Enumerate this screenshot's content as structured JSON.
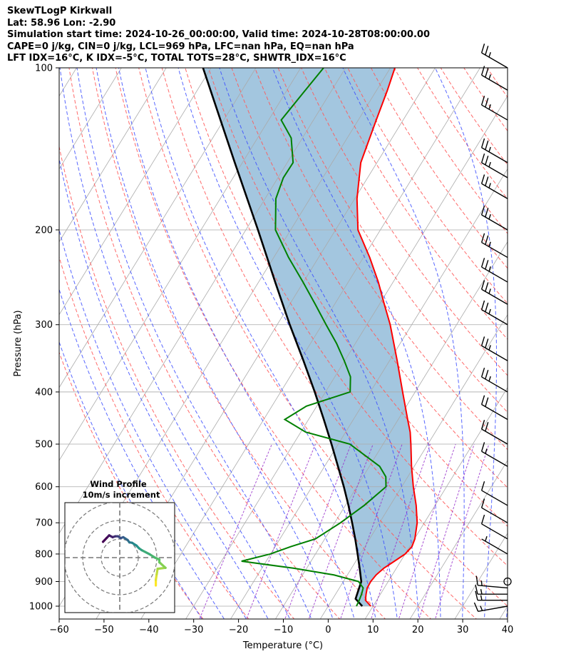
{
  "header": {
    "line1": "SkewTLogP Kirkwall",
    "line2": "Lat: 58.96   Lon: -2.90",
    "line3": "Simulation start time: 2024-10-26_00:00:00, Valid time: 2024-10-28T08:00:00.00",
    "line4": "CAPE=0 j/kg, CIN=0 j/kg, LCL=969 hPa, LFC=nan hPa, EQ=nan hPa",
    "line5": "LFT IDX=16°C, K IDX=-5°C, TOTAL TOTS=28°C, SHWTR_IDX=16°C"
  },
  "chart_data": {
    "type": "line",
    "xlabel": "Temperature (°C)",
    "ylabel": "Pressure (hPa)",
    "xlim": [
      -60,
      40
    ],
    "ylim": [
      1050,
      100
    ],
    "y_scale": "log",
    "x_ticks": [
      "−60",
      "−50",
      "−40",
      "−30",
      "−20",
      "−10",
      "0",
      "10",
      "20",
      "30",
      "40"
    ],
    "x_tick_values": [
      -60,
      -50,
      -40,
      -30,
      -20,
      -10,
      0,
      10,
      20,
      30,
      40
    ],
    "y_ticks": [
      "1000",
      "900",
      "800",
      "700",
      "600",
      "500",
      "400",
      "300",
      "200",
      "100"
    ],
    "y_tick_values": [
      1000,
      900,
      800,
      700,
      600,
      500,
      400,
      300,
      200,
      100
    ],
    "grid": true,
    "colors": {
      "temperature": "#ff0000",
      "dewpoint": "#008000",
      "parcel": "#000000",
      "shade": "#a3c6df",
      "dry_adiabat": "#ff5a5a",
      "moist_adiabat": "#3b4cff",
      "mixing_ratio": "#9932cc",
      "isotherm": "#aaaaaa"
    },
    "temperature_profile": [
      [
        1000,
        9.5
      ],
      [
        975,
        7.5
      ],
      [
        950,
        6.8
      ],
      [
        925,
        6.2
      ],
      [
        900,
        6.1
      ],
      [
        875,
        6.4
      ],
      [
        850,
        7.2
      ],
      [
        825,
        8.6
      ],
      [
        800,
        10.0
      ],
      [
        775,
        10.5
      ],
      [
        750,
        10.1
      ],
      [
        700,
        8.4
      ],
      [
        650,
        5.8
      ],
      [
        600,
        2.6
      ],
      [
        550,
        -0.6
      ],
      [
        500,
        -3.8
      ],
      [
        475,
        -5.6
      ],
      [
        450,
        -7.9
      ],
      [
        400,
        -12.8
      ],
      [
        350,
        -18.3
      ],
      [
        300,
        -24.8
      ],
      [
        275,
        -28.9
      ],
      [
        250,
        -33.3
      ],
      [
        225,
        -38.6
      ],
      [
        200,
        -45.0
      ],
      [
        175,
        -49.5
      ],
      [
        150,
        -53.6
      ],
      [
        125,
        -56.0
      ],
      [
        110,
        -57.6
      ],
      [
        100,
        -59.0
      ]
    ],
    "dewpoint_profile": [
      [
        1000,
        6.3
      ],
      [
        975,
        6.1
      ],
      [
        950,
        5.8
      ],
      [
        925,
        5.3
      ],
      [
        900,
        3.4
      ],
      [
        875,
        -3.0
      ],
      [
        850,
        -13.0
      ],
      [
        825,
        -25.5
      ],
      [
        800,
        -20.1
      ],
      [
        775,
        -16.5
      ],
      [
        750,
        -12.1
      ],
      [
        700,
        -8.7
      ],
      [
        650,
        -5.8
      ],
      [
        600,
        -3.5
      ],
      [
        575,
        -4.9
      ],
      [
        550,
        -7.7
      ],
      [
        500,
        -17.4
      ],
      [
        475,
        -28.9
      ],
      [
        450,
        -35.3
      ],
      [
        425,
        -32.3
      ],
      [
        400,
        -24.5
      ],
      [
        375,
        -26.5
      ],
      [
        350,
        -30.1
      ],
      [
        325,
        -34.2
      ],
      [
        300,
        -39.1
      ],
      [
        275,
        -44.3
      ],
      [
        250,
        -50.1
      ],
      [
        225,
        -56.7
      ],
      [
        200,
        -63.4
      ],
      [
        175,
        -67.6
      ],
      [
        160,
        -68.8
      ],
      [
        150,
        -68.7
      ],
      [
        135,
        -72.5
      ],
      [
        125,
        -77.2
      ],
      [
        110,
        -75.9
      ],
      [
        100,
        -74.9
      ]
    ],
    "parcel_profile": [
      [
        1000,
        7.6
      ],
      [
        969,
        5.1
      ],
      [
        925,
        4.4
      ],
      [
        900,
        4.0
      ],
      [
        850,
        1.8
      ],
      [
        800,
        -0.6
      ],
      [
        750,
        -3.2
      ],
      [
        700,
        -6.1
      ],
      [
        650,
        -9.3
      ],
      [
        600,
        -12.9
      ],
      [
        550,
        -17.0
      ],
      [
        500,
        -21.5
      ],
      [
        450,
        -26.6
      ],
      [
        400,
        -32.4
      ],
      [
        350,
        -39.2
      ],
      [
        300,
        -47.2
      ],
      [
        250,
        -56.3
      ],
      [
        200,
        -67.3
      ],
      [
        150,
        -81.7
      ],
      [
        100,
        -101.8
      ]
    ],
    "wind_barbs": [
      {
        "p": 1000,
        "speed_kt": 15,
        "dir_deg": 260
      },
      {
        "p": 975,
        "speed_kt": 15,
        "dir_deg": 270
      },
      {
        "p": 950,
        "speed_kt": 15,
        "dir_deg": 270
      },
      {
        "p": 925,
        "speed_kt": 15,
        "dir_deg": 275
      },
      {
        "p": 900,
        "speed_kt": 0,
        "dir_deg": 0
      },
      {
        "p": 800,
        "speed_kt": 5,
        "dir_deg": 300
      },
      {
        "p": 750,
        "speed_kt": 10,
        "dir_deg": 300
      },
      {
        "p": 700,
        "speed_kt": 10,
        "dir_deg": 300
      },
      {
        "p": 650,
        "speed_kt": 10,
        "dir_deg": 300
      },
      {
        "p": 550,
        "speed_kt": 15,
        "dir_deg": 300
      },
      {
        "p": 500,
        "speed_kt": 20,
        "dir_deg": 300
      },
      {
        "p": 450,
        "speed_kt": 20,
        "dir_deg": 300
      },
      {
        "p": 400,
        "speed_kt": 25,
        "dir_deg": 300
      },
      {
        "p": 350,
        "speed_kt": 25,
        "dir_deg": 300
      },
      {
        "p": 300,
        "speed_kt": 25,
        "dir_deg": 300
      },
      {
        "p": 275,
        "speed_kt": 25,
        "dir_deg": 300
      },
      {
        "p": 250,
        "speed_kt": 25,
        "dir_deg": 300
      },
      {
        "p": 225,
        "speed_kt": 25,
        "dir_deg": 300
      },
      {
        "p": 200,
        "speed_kt": 25,
        "dir_deg": 300
      },
      {
        "p": 175,
        "speed_kt": 25,
        "dir_deg": 300
      },
      {
        "p": 160,
        "speed_kt": 25,
        "dir_deg": 300
      },
      {
        "p": 150,
        "speed_kt": 25,
        "dir_deg": 300
      },
      {
        "p": 125,
        "speed_kt": 25,
        "dir_deg": 300
      },
      {
        "p": 110,
        "speed_kt": 25,
        "dir_deg": 300
      },
      {
        "p": 100,
        "speed_kt": 25,
        "dir_deg": 300
      }
    ],
    "inset": {
      "title_line1": "Wind Profile",
      "title_line2": "10m/s increment",
      "hodograph_uv": [
        [
          -0.3,
          -1.5
        ],
        [
          -0.3,
          -1.2
        ],
        [
          -0.25,
          -0.9
        ],
        [
          -0.2,
          -0.6
        ],
        [
          0.25,
          -0.55
        ],
        [
          -0.1,
          -0.25
        ],
        [
          -0.1,
          -0.1
        ],
        [
          -0.35,
          0.0
        ],
        [
          -0.65,
          0.18
        ],
        [
          -1.1,
          0.4
        ],
        [
          -1.25,
          0.5
        ],
        [
          -1.4,
          0.65
        ],
        [
          -1.65,
          0.8
        ],
        [
          -1.8,
          0.82
        ],
        [
          -1.9,
          0.95
        ],
        [
          -2.15,
          1.1
        ],
        [
          -2.3,
          1.05
        ],
        [
          -2.45,
          1.15
        ],
        [
          -2.6,
          1.15
        ],
        [
          -2.75,
          1.1
        ],
        [
          -2.95,
          1.2
        ],
        [
          -3.1,
          1.05
        ],
        [
          -3.3,
          0.85
        ]
      ]
    }
  }
}
